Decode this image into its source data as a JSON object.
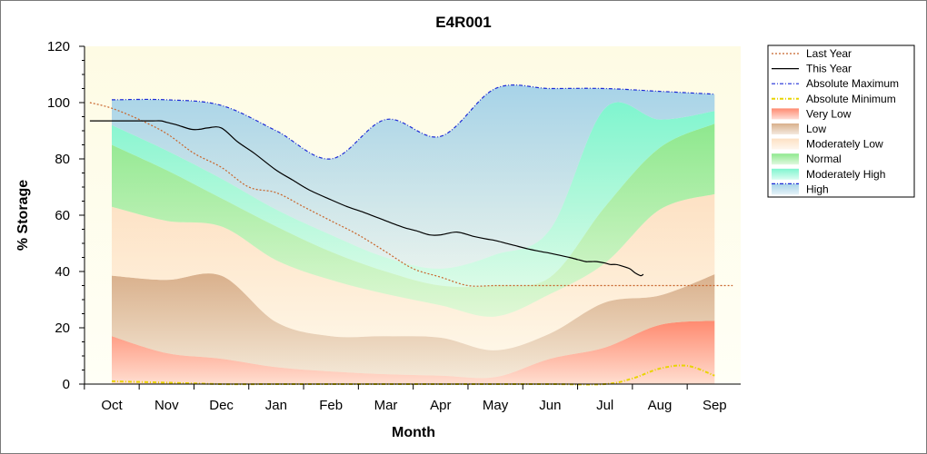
{
  "chart_data": {
    "type": "area",
    "title": "E4R001",
    "xlabel": "Month",
    "ylabel": "% Storage",
    "ylim": [
      0,
      120
    ],
    "yticks": [
      "0",
      "20",
      "40",
      "60",
      "80",
      "100",
      "120"
    ],
    "categories": [
      "Oct",
      "Nov",
      "Dec",
      "Jan",
      "Feb",
      "Mar",
      "Apr",
      "May",
      "Jun",
      "Jul",
      "Aug",
      "Sep"
    ],
    "legend_position": "right",
    "grid": false,
    "bands": [
      {
        "name": "Very Low",
        "color": "#ff8a70",
        "lower": [
          0,
          0,
          0,
          0,
          0,
          0,
          0,
          0,
          0,
          0,
          0,
          0
        ],
        "upper": [
          17,
          11,
          9,
          6,
          4.5,
          3.5,
          3,
          2.5,
          9,
          13,
          21,
          22.5
        ]
      },
      {
        "name": "Low",
        "color": "#d9b08c",
        "lower": [
          17,
          11,
          9,
          6,
          4.5,
          3.5,
          3,
          2.5,
          9,
          13,
          21,
          22.5
        ],
        "upper": [
          38.5,
          37,
          38.5,
          22,
          17,
          17,
          16.5,
          12,
          18,
          29,
          31.5,
          39
        ]
      },
      {
        "name": "Moderately Low",
        "color": "#fde1c4",
        "lower": [
          38.5,
          37,
          38.5,
          22,
          17,
          17,
          16.5,
          12,
          18,
          29,
          31.5,
          39
        ],
        "upper": [
          63,
          58,
          56,
          44,
          37,
          32,
          28,
          24,
          32,
          43,
          62,
          67.5
        ]
      },
      {
        "name": "Normal",
        "color": "#8ee88e",
        "lower": [
          63,
          58,
          56,
          44,
          37,
          32,
          28,
          24,
          32,
          43,
          62,
          67.5
        ],
        "upper": [
          85,
          76,
          66,
          56,
          47,
          40,
          35,
          35,
          38,
          63,
          84,
          92.5
        ]
      },
      {
        "name": "Moderately High",
        "color": "#7ff5cf",
        "lower": [
          85,
          76,
          66,
          56,
          47,
          40,
          35,
          35,
          38,
          63,
          84,
          92.5
        ],
        "upper": [
          92,
          83,
          73,
          62,
          53,
          45,
          41,
          46,
          55,
          98,
          94,
          97
        ]
      },
      {
        "name": "High",
        "color": "#a7d3e8",
        "lower": [
          92,
          83,
          73,
          62,
          53,
          45,
          41,
          46,
          55,
          98,
          94,
          97
        ],
        "upper": [
          101,
          101,
          99,
          90,
          80,
          94,
          88,
          105,
          105,
          105,
          104,
          103
        ]
      }
    ],
    "series": [
      {
        "name": "Last Year",
        "color": "#c8642a",
        "style": "dotted",
        "x": [
          -0.4,
          0,
          0.5,
          1,
          1.5,
          2,
          2.5,
          3,
          3.5,
          4,
          4.5,
          5,
          5.5,
          6,
          6.5,
          7,
          7.5,
          8,
          8.5,
          9,
          9.5,
          10,
          10.5,
          11,
          11.33
        ],
        "values": [
          100,
          98,
          94,
          89,
          82,
          77,
          70,
          68,
          63,
          58,
          53,
          47,
          41,
          38,
          35,
          35,
          35,
          35,
          35,
          35,
          35,
          35,
          35,
          35,
          35
        ]
      },
      {
        "name": "This Year",
        "color": "#000000",
        "style": "solid",
        "x": [
          -0.4,
          0,
          0.3,
          0.55,
          0.75,
          0.9,
          1,
          1.2,
          1.45,
          1.6,
          1.75,
          2,
          2.3,
          2.6,
          3,
          3.3,
          3.6,
          4,
          4.3,
          4.6,
          5,
          5.2,
          5.35,
          5.55,
          5.8,
          6,
          6.3,
          6.6,
          6.85,
          7,
          7.3,
          7.6,
          7.85,
          8,
          8.35,
          8.45,
          8.55,
          8.65,
          8.7,
          8.75,
          8.85,
          9,
          9.1,
          9.2,
          9.3,
          9.45,
          9.55,
          9.65,
          9.7
        ],
        "values": [
          93.5,
          93.5,
          93.5,
          93.5,
          93.5,
          93.5,
          93,
          92,
          90.5,
          90.5,
          91,
          91,
          86,
          82,
          76,
          72.5,
          69,
          65.5,
          63,
          61,
          58,
          56.5,
          55.5,
          54.5,
          53,
          53,
          54,
          52.5,
          51.5,
          51,
          49.5,
          48,
          47,
          46.5,
          45,
          44.5,
          44,
          43.5,
          43.5,
          43.5,
          43.5,
          43,
          42.5,
          42.5,
          42,
          41,
          39.5,
          38.5,
          39
        ]
      },
      {
        "name": "Absolute Maximum",
        "color": "#1d2bd6",
        "style": "dashdot",
        "from_band": "High",
        "edge": "upper"
      },
      {
        "name": "Absolute Minimum",
        "color": "#e8d400",
        "style": "dashdot",
        "x": [
          0,
          1,
          2,
          3,
          4,
          5,
          6,
          7,
          8,
          9,
          9.5,
          10,
          10.5,
          11
        ],
        "values": [
          1,
          0.5,
          0,
          0,
          0,
          0,
          0,
          0,
          0,
          0,
          2,
          5.5,
          6.5,
          3
        ]
      }
    ],
    "legend": [
      "Last Year",
      "This Year",
      "Absolute Maximum",
      "Absolute Minimum",
      "Very Low",
      "Low",
      "Moderately Low",
      "Normal",
      "Moderately High",
      "High"
    ]
  }
}
